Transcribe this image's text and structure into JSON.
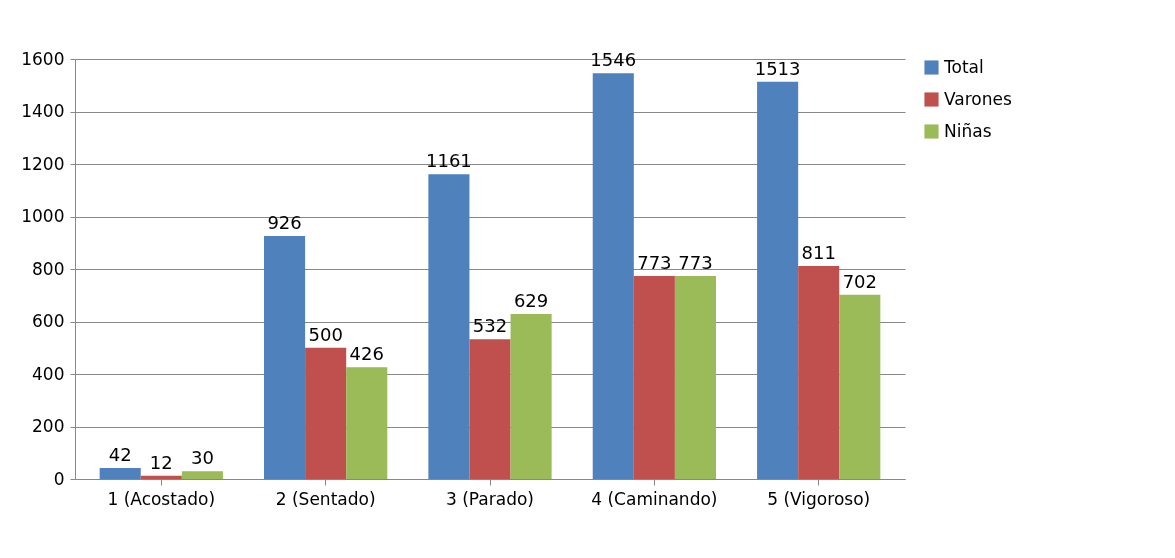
{
  "chart_data": {
    "type": "bar",
    "categories": [
      "1 (Acostado)",
      "2 (Sentado)",
      "3 (Parado)",
      "4 (Caminando)",
      "5 (Vigoroso)"
    ],
    "series": [
      {
        "name": "Total",
        "color": "#4f81bd",
        "values": [
          42,
          926,
          1161,
          1546,
          1513
        ]
      },
      {
        "name": "Varones",
        "color": "#c0504d",
        "values": [
          12,
          500,
          532,
          773,
          811
        ]
      },
      {
        "name": "Niñas",
        "color": "#9bbb59",
        "values": [
          30,
          426,
          629,
          773,
          702
        ]
      }
    ],
    "ylim": [
      0,
      1600
    ],
    "yticks": [
      0,
      200,
      400,
      600,
      800,
      1000,
      1200,
      1400,
      1600
    ],
    "grid": "y",
    "legend": "right",
    "data_labels": true
  }
}
